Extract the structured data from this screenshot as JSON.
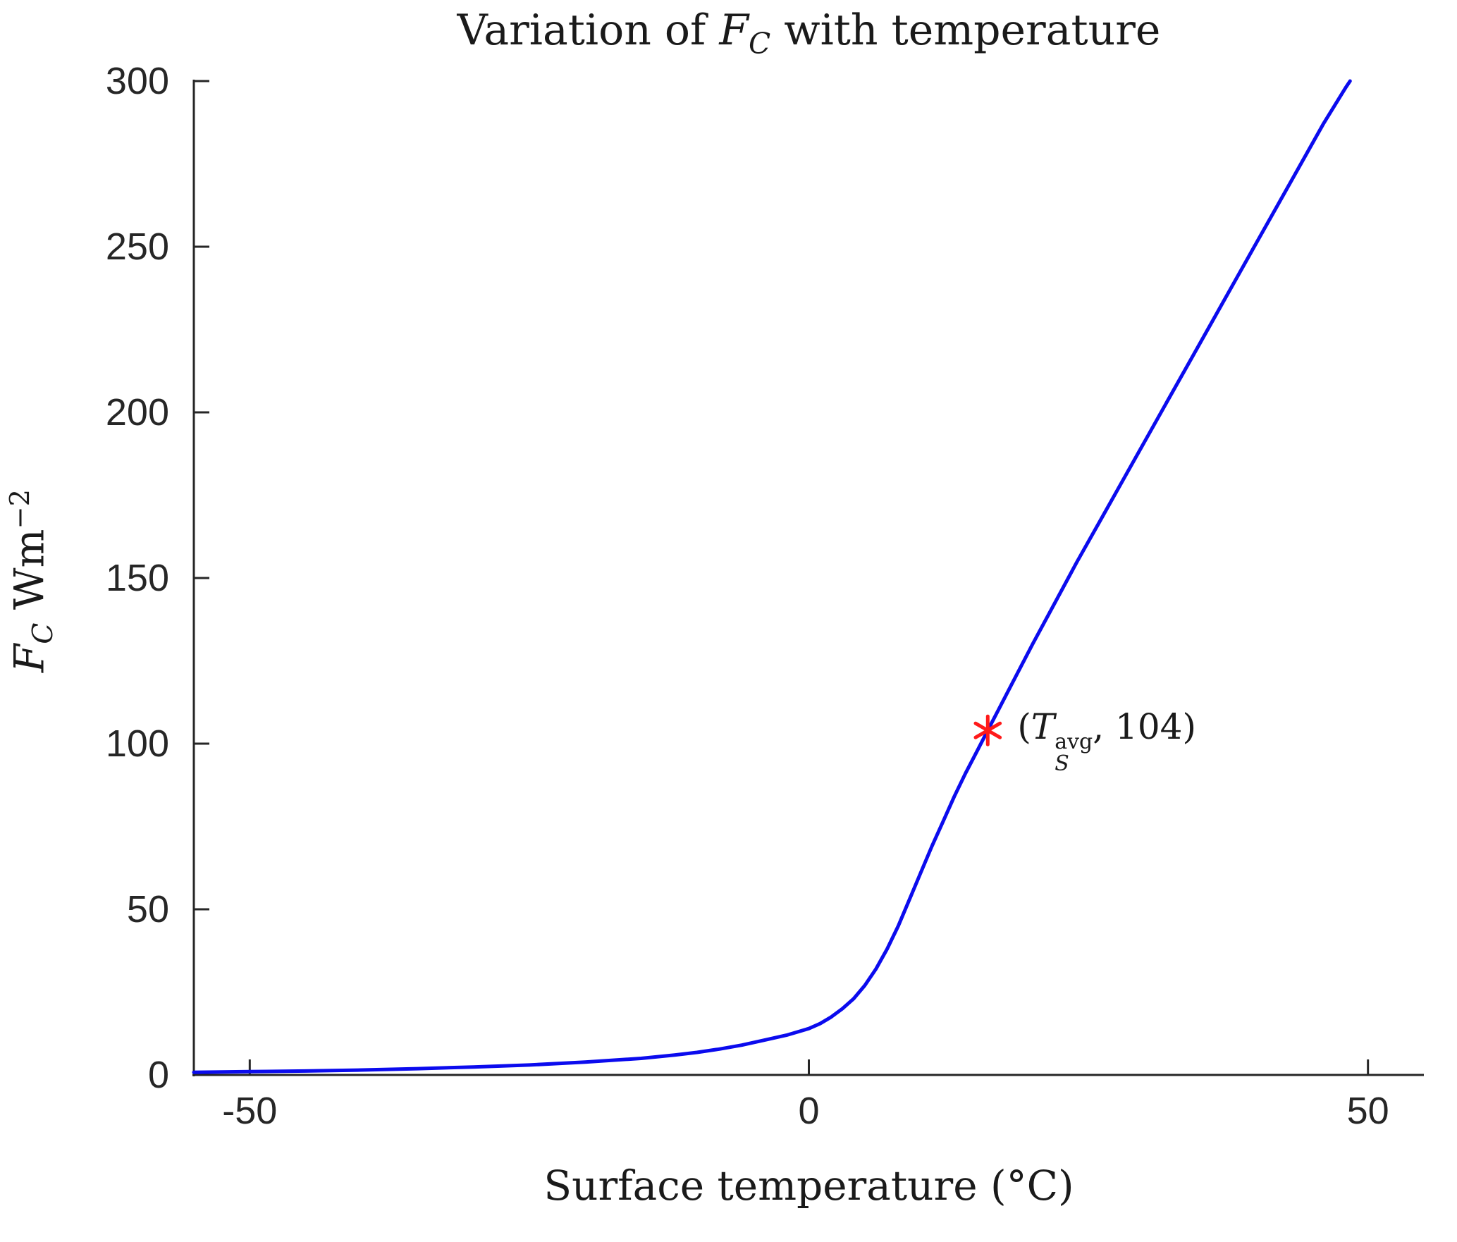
{
  "page": {
    "background": "#ffffff"
  },
  "labels": {
    "title": {
      "pre": "Variation of ",
      "math": "F",
      "math_sub": "C",
      "post": " with temperature"
    },
    "ylabel": {
      "math": "F",
      "math_sub": "C",
      "unit": " Wm",
      "unit_sup": "−2"
    },
    "xlabel": "Surface temperature (°C)",
    "annotation": {
      "pre": "(",
      "var": "T",
      "sup": "avg",
      "sub": "S",
      "post": ", 104)"
    }
  },
  "chart_data": {
    "type": "line",
    "title": "Variation of F_C with temperature",
    "xlabel": "Surface temperature (°C)",
    "ylabel": "F_C Wm^-2",
    "xlim": [
      -55,
      55
    ],
    "ylim": [
      0,
      300
    ],
    "xticks": [
      -50,
      0,
      50
    ],
    "yticks": [
      0,
      50,
      100,
      150,
      200,
      250,
      300
    ],
    "grid": false,
    "legend": "none",
    "axis_color": "#262626",
    "marker": {
      "shape": "asterisk",
      "color": "#ff1a1a",
      "x": 16,
      "y": 104,
      "label": "(T_S^avg, 104)"
    },
    "series": [
      {
        "name": "F_C",
        "color": "#0b0bee",
        "points": [
          [
            -55,
            0.8
          ],
          [
            -50,
            1
          ],
          [
            -45,
            1.2
          ],
          [
            -40,
            1.5
          ],
          [
            -35,
            1.9
          ],
          [
            -30,
            2.4
          ],
          [
            -25,
            3
          ],
          [
            -20,
            3.9
          ],
          [
            -15,
            5
          ],
          [
            -12,
            6
          ],
          [
            -10,
            6.8
          ],
          [
            -8,
            7.8
          ],
          [
            -6,
            9
          ],
          [
            -4,
            10.5
          ],
          [
            -2,
            12
          ],
          [
            0,
            14
          ],
          [
            1,
            15.5
          ],
          [
            2,
            17.5
          ],
          [
            3,
            20
          ],
          [
            4,
            23
          ],
          [
            5,
            27
          ],
          [
            6,
            32
          ],
          [
            7,
            38
          ],
          [
            8,
            45
          ],
          [
            9,
            53
          ],
          [
            10,
            61
          ],
          [
            11,
            69
          ],
          [
            12,
            76.5
          ],
          [
            13,
            84
          ],
          [
            14,
            91
          ],
          [
            15,
            97.5
          ],
          [
            16,
            104
          ],
          [
            17,
            110.5
          ],
          [
            18,
            117
          ],
          [
            20,
            130
          ],
          [
            22,
            142.5
          ],
          [
            24,
            155
          ],
          [
            26,
            167
          ],
          [
            28,
            179
          ],
          [
            30,
            191
          ],
          [
            32,
            203
          ],
          [
            34,
            215
          ],
          [
            36,
            227
          ],
          [
            38,
            239
          ],
          [
            40,
            251
          ],
          [
            42,
            263
          ],
          [
            44,
            275
          ],
          [
            46,
            287
          ],
          [
            48,
            298
          ],
          [
            48.4,
            300
          ]
        ]
      }
    ]
  }
}
